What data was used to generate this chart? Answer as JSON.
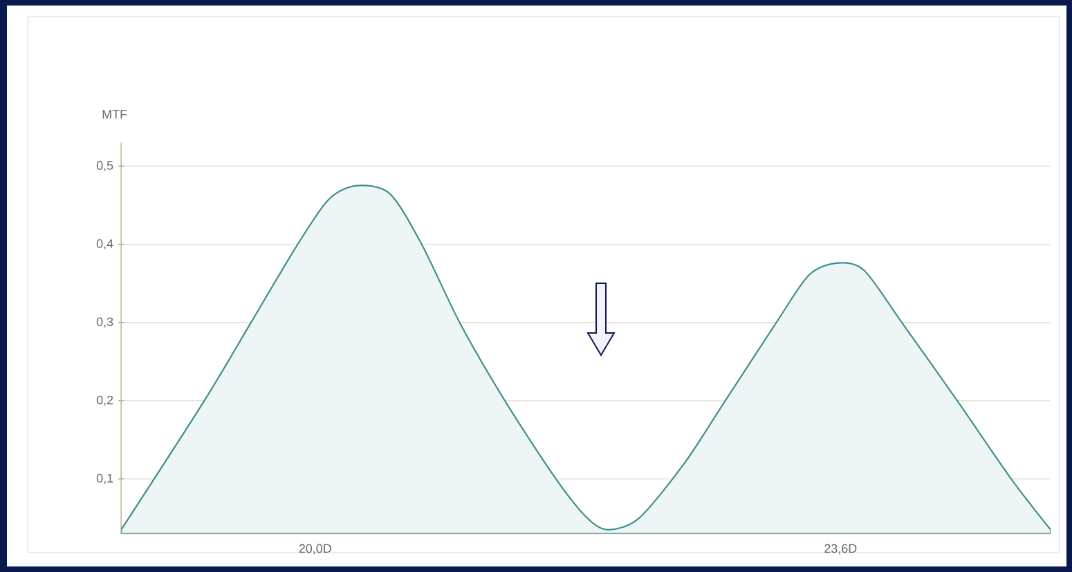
{
  "chart_data": {
    "type": "area",
    "ylabel": "MTF",
    "x": [
      18.67,
      19.24,
      19.56,
      19.88,
      20.09,
      20.28,
      20.51,
      20.73,
      20.99,
      21.3,
      21.65,
      21.87,
      22.01,
      22.22,
      22.53,
      22.81,
      23.16,
      23.38,
      23.57,
      23.76,
      24.02,
      24.4,
      24.77,
      25.04
    ],
    "values": [
      0.035,
      0.2,
      0.3,
      0.4,
      0.457,
      0.475,
      0.465,
      0.4,
      0.3,
      0.2,
      0.1,
      0.049,
      0.035,
      0.05,
      0.12,
      0.2,
      0.3,
      0.36,
      0.376,
      0.367,
      0.3,
      0.2,
      0.1,
      0.035
    ],
    "color": "#3f8f8c",
    "xlim": [
      18.67,
      25.04
    ],
    "ylim": [
      0.03,
      0.53
    ],
    "xticks": [
      {
        "value": 20.0,
        "label": "20,0D"
      },
      {
        "value": 23.6,
        "label": "23,6D"
      }
    ],
    "yticks": [
      {
        "value": 0.1,
        "label": "0,1"
      },
      {
        "value": 0.2,
        "label": "0,2"
      },
      {
        "value": 0.3,
        "label": "0,3"
      },
      {
        "value": 0.4,
        "label": "0,4"
      },
      {
        "value": 0.5,
        "label": "0,5"
      }
    ],
    "grid": "y"
  }
}
